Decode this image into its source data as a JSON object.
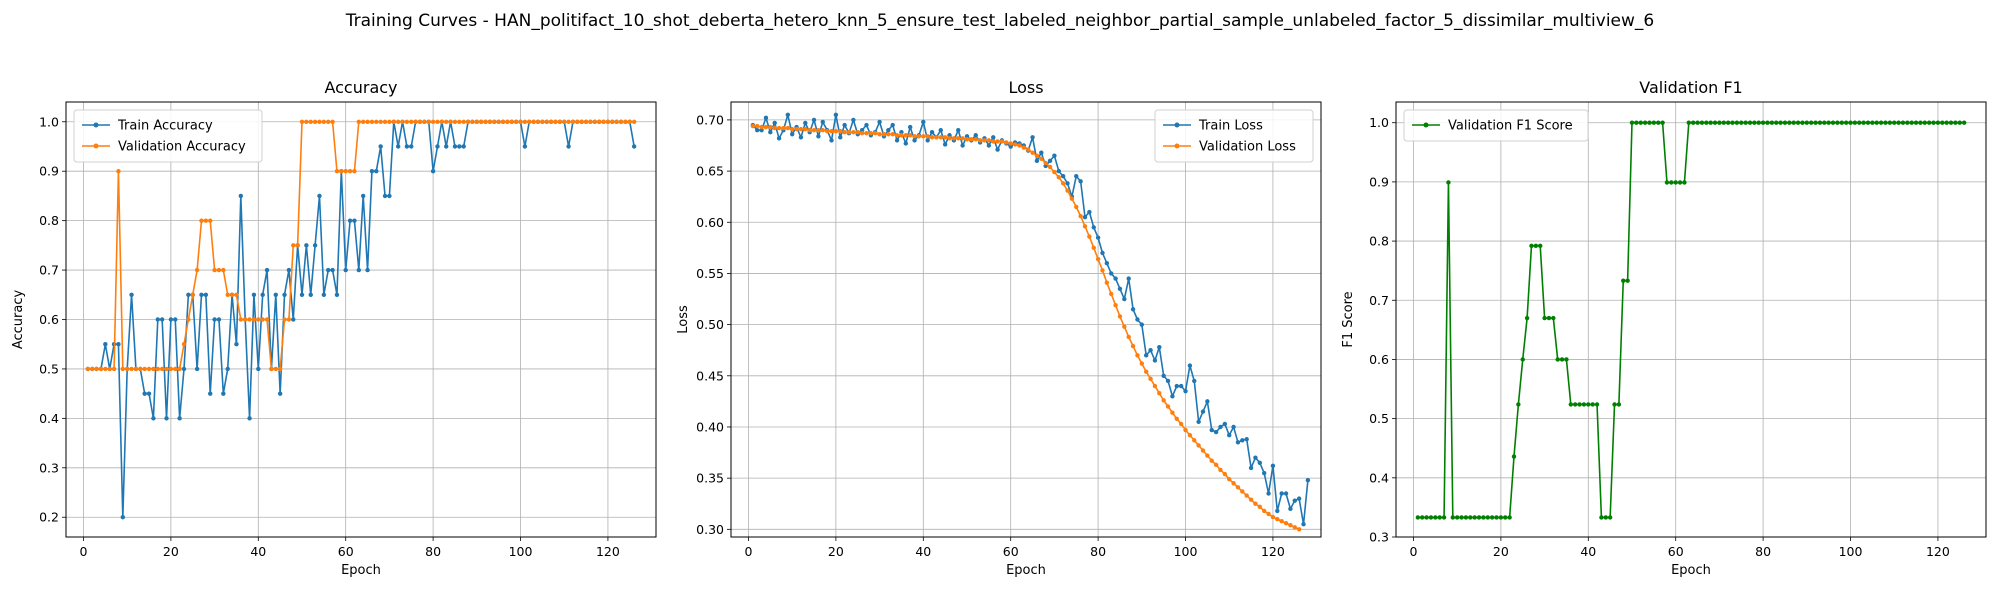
{
  "suptitle": "Training Curves - HAN_politifact_10_shot_deberta_hetero_knn_5_ensure_test_labeled_neighbor_partial_sample_unlabeled_factor_5_dissimilar_multiview_6",
  "colors": {
    "blue": "#1f77b4",
    "orange": "#ff7f0e",
    "green": "#008000",
    "grid": "#b0b0b0"
  },
  "chart_data": [
    {
      "type": "line",
      "title": "Accuracy",
      "xlabel": "Epoch",
      "ylabel": "Accuracy",
      "xlim": [
        -4,
        131
      ],
      "ylim": [
        0.16,
        1.04
      ],
      "xticks": [
        0,
        20,
        40,
        60,
        80,
        100,
        120
      ],
      "yticks": [
        0.2,
        0.3,
        0.4,
        0.5,
        0.6,
        0.7,
        0.8,
        0.9,
        1.0
      ],
      "ytick_labels": [
        "0.2",
        "0.3",
        "0.4",
        "0.5",
        "0.6",
        "0.7",
        "0.8",
        "0.9",
        "1.0"
      ],
      "grid": true,
      "legend_loc": "upper-left",
      "x_start": 1,
      "series": [
        {
          "name": "Train Accuracy",
          "color": "#1f77b4",
          "values": [
            0.5,
            0.5,
            0.5,
            0.5,
            0.55,
            0.5,
            0.55,
            0.55,
            0.2,
            0.5,
            0.65,
            0.5,
            0.5,
            0.45,
            0.45,
            0.4,
            0.6,
            0.6,
            0.4,
            0.6,
            0.6,
            0.4,
            0.5,
            0.65,
            0.65,
            0.5,
            0.65,
            0.65,
            0.45,
            0.6,
            0.6,
            0.45,
            0.5,
            0.65,
            0.55,
            0.85,
            0.6,
            0.4,
            0.65,
            0.5,
            0.65,
            0.7,
            0.5,
            0.65,
            0.45,
            0.65,
            0.7,
            0.6,
            0.75,
            0.65,
            0.75,
            0.65,
            0.75,
            0.85,
            0.65,
            0.7,
            0.7,
            0.65,
            0.9,
            0.7,
            0.8,
            0.8,
            0.7,
            0.85,
            0.7,
            0.9,
            0.9,
            0.95,
            0.85,
            0.85,
            1.0,
            0.95,
            1.0,
            0.95,
            0.95,
            1.0,
            1.0,
            1.0,
            1.0,
            0.9,
            0.95,
            1.0,
            0.95,
            1.0,
            0.95,
            0.95,
            0.95,
            1.0,
            1.0,
            1.0,
            1.0,
            1.0,
            1.0,
            1.0,
            1.0,
            1.0,
            1.0,
            1.0,
            1.0,
            1.0,
            0.95,
            1.0,
            1.0,
            1.0,
            1.0,
            1.0,
            1.0,
            1.0,
            1.0,
            1.0,
            0.95,
            1.0,
            1.0,
            1.0,
            1.0,
            1.0,
            1.0,
            1.0,
            1.0,
            1.0,
            1.0,
            1.0,
            1.0,
            1.0,
            1.0,
            0.95
          ]
        },
        {
          "name": "Validation Accuracy",
          "color": "#ff7f0e",
          "values": [
            0.5,
            0.5,
            0.5,
            0.5,
            0.5,
            0.5,
            0.5,
            0.9,
            0.5,
            0.5,
            0.5,
            0.5,
            0.5,
            0.5,
            0.5,
            0.5,
            0.5,
            0.5,
            0.5,
            0.5,
            0.5,
            0.5,
            0.55,
            0.6,
            0.65,
            0.7,
            0.8,
            0.8,
            0.8,
            0.7,
            0.7,
            0.7,
            0.65,
            0.65,
            0.65,
            0.6,
            0.6,
            0.6,
            0.6,
            0.6,
            0.6,
            0.6,
            0.5,
            0.5,
            0.5,
            0.6,
            0.6,
            0.75,
            0.75,
            1.0,
            1.0,
            1.0,
            1.0,
            1.0,
            1.0,
            1.0,
            1.0,
            0.9,
            0.9,
            0.9,
            0.9,
            0.9,
            1.0,
            1.0,
            1.0,
            1.0,
            1.0,
            1.0,
            1.0,
            1.0,
            1.0,
            1.0,
            1.0,
            1.0,
            1.0,
            1.0,
            1.0,
            1.0,
            1.0,
            1.0,
            1.0,
            1.0,
            1.0,
            1.0,
            1.0,
            1.0,
            1.0,
            1.0,
            1.0,
            1.0,
            1.0,
            1.0,
            1.0,
            1.0,
            1.0,
            1.0,
            1.0,
            1.0,
            1.0,
            1.0,
            1.0,
            1.0,
            1.0,
            1.0,
            1.0,
            1.0,
            1.0,
            1.0,
            1.0,
            1.0,
            1.0,
            1.0,
            1.0,
            1.0,
            1.0,
            1.0,
            1.0,
            1.0,
            1.0,
            1.0,
            1.0,
            1.0,
            1.0,
            1.0,
            1.0,
            1.0
          ]
        }
      ]
    },
    {
      "type": "line",
      "title": "Loss",
      "xlabel": "Epoch",
      "ylabel": "Loss",
      "xlim": [
        -4,
        131
      ],
      "ylim": [
        0.2925,
        0.7175
      ],
      "xticks": [
        0,
        20,
        40,
        60,
        80,
        100,
        120
      ],
      "yticks": [
        0.3,
        0.35,
        0.4,
        0.45,
        0.5,
        0.55,
        0.6,
        0.65,
        0.7
      ],
      "ytick_labels": [
        "0.30",
        "0.35",
        "0.40",
        "0.45",
        "0.50",
        "0.55",
        "0.60",
        "0.65",
        "0.70"
      ],
      "grid": true,
      "legend_loc": "upper-right",
      "x_start": 1,
      "series": [
        {
          "name": "Train Loss",
          "color": "#1f77b4",
          "values": [
            0.695,
            0.69,
            0.69,
            0.702,
            0.688,
            0.697,
            0.682,
            0.69,
            0.705,
            0.686,
            0.693,
            0.683,
            0.697,
            0.688,
            0.7,
            0.684,
            0.698,
            0.69,
            0.68,
            0.705,
            0.683,
            0.695,
            0.687,
            0.7,
            0.686,
            0.69,
            0.695,
            0.685,
            0.688,
            0.698,
            0.684,
            0.69,
            0.695,
            0.68,
            0.688,
            0.677,
            0.693,
            0.68,
            0.685,
            0.698,
            0.68,
            0.688,
            0.683,
            0.69,
            0.676,
            0.685,
            0.68,
            0.69,
            0.675,
            0.684,
            0.68,
            0.685,
            0.678,
            0.682,
            0.675,
            0.683,
            0.671,
            0.68,
            0.677,
            0.674,
            0.678,
            0.677,
            0.675,
            0.67,
            0.683,
            0.66,
            0.668,
            0.655,
            0.66,
            0.665,
            0.65,
            0.645,
            0.638,
            0.625,
            0.645,
            0.64,
            0.605,
            0.61,
            0.595,
            0.585,
            0.57,
            0.56,
            0.55,
            0.545,
            0.535,
            0.525,
            0.545,
            0.515,
            0.505,
            0.5,
            0.47,
            0.475,
            0.465,
            0.478,
            0.45,
            0.445,
            0.43,
            0.44,
            0.44,
            0.435,
            0.46,
            0.445,
            0.405,
            0.415,
            0.425,
            0.397,
            0.395,
            0.4,
            0.403,
            0.392,
            0.4,
            0.385,
            0.387,
            0.388,
            0.36,
            0.37,
            0.365,
            0.355,
            0.335,
            0.362,
            0.318,
            0.335,
            0.335,
            0.32,
            0.328,
            0.33,
            0.305,
            0.348
          ]
        },
        {
          "name": "Validation Loss",
          "color": "#ff7f0e",
          "values": [
            0.694,
            0.694,
            0.693,
            0.693,
            0.693,
            0.692,
            0.692,
            0.692,
            0.692,
            0.691,
            0.691,
            0.691,
            0.691,
            0.69,
            0.69,
            0.69,
            0.69,
            0.689,
            0.689,
            0.689,
            0.689,
            0.688,
            0.688,
            0.688,
            0.688,
            0.687,
            0.687,
            0.687,
            0.687,
            0.686,
            0.686,
            0.686,
            0.686,
            0.685,
            0.685,
            0.685,
            0.685,
            0.684,
            0.684,
            0.684,
            0.684,
            0.683,
            0.683,
            0.683,
            0.683,
            0.682,
            0.682,
            0.682,
            0.682,
            0.681,
            0.681,
            0.681,
            0.68,
            0.68,
            0.68,
            0.679,
            0.679,
            0.679,
            0.678,
            0.677,
            0.676,
            0.675,
            0.673,
            0.671,
            0.668,
            0.665,
            0.662,
            0.658,
            0.654,
            0.649,
            0.644,
            0.638,
            0.631,
            0.623,
            0.615,
            0.606,
            0.596,
            0.586,
            0.575,
            0.564,
            0.553,
            0.541,
            0.53,
            0.519,
            0.508,
            0.498,
            0.488,
            0.479,
            0.47,
            0.462,
            0.454,
            0.447,
            0.44,
            0.433,
            0.426,
            0.42,
            0.414,
            0.408,
            0.403,
            0.397,
            0.392,
            0.387,
            0.382,
            0.377,
            0.372,
            0.367,
            0.363,
            0.358,
            0.354,
            0.349,
            0.345,
            0.341,
            0.337,
            0.333,
            0.329,
            0.325,
            0.322,
            0.318,
            0.315,
            0.312,
            0.31,
            0.308,
            0.306,
            0.304,
            0.302,
            0.3
          ]
        }
      ]
    },
    {
      "type": "line",
      "title": "Validation F1",
      "xlabel": "Epoch",
      "ylabel": "F1 Score",
      "xlim": [
        -4,
        131
      ],
      "ylim": [
        0.3,
        1.035
      ],
      "xticks": [
        0,
        20,
        40,
        60,
        80,
        100,
        120
      ],
      "yticks": [
        0.3,
        0.4,
        0.5,
        0.6,
        0.7,
        0.8,
        0.9,
        1.0
      ],
      "ytick_labels": [
        "0.3",
        "0.4",
        "0.5",
        "0.6",
        "0.7",
        "0.8",
        "0.9",
        "1.0"
      ],
      "grid": true,
      "legend_loc": "upper-left",
      "x_start": 1,
      "series": [
        {
          "name": "Validation F1 Score",
          "color": "#008000",
          "values": [
            0.333,
            0.333,
            0.333,
            0.333,
            0.333,
            0.333,
            0.333,
            0.899,
            0.333,
            0.333,
            0.333,
            0.333,
            0.333,
            0.333,
            0.333,
            0.333,
            0.333,
            0.333,
            0.333,
            0.333,
            0.333,
            0.333,
            0.436,
            0.524,
            0.6,
            0.67,
            0.792,
            0.792,
            0.792,
            0.67,
            0.67,
            0.67,
            0.6,
            0.6,
            0.6,
            0.524,
            0.524,
            0.524,
            0.524,
            0.524,
            0.524,
            0.524,
            0.333,
            0.333,
            0.333,
            0.524,
            0.524,
            0.733,
            0.733,
            1.0,
            1.0,
            1.0,
            1.0,
            1.0,
            1.0,
            1.0,
            1.0,
            0.899,
            0.899,
            0.899,
            0.899,
            0.899,
            1.0,
            1.0,
            1.0,
            1.0,
            1.0,
            1.0,
            1.0,
            1.0,
            1.0,
            1.0,
            1.0,
            1.0,
            1.0,
            1.0,
            1.0,
            1.0,
            1.0,
            1.0,
            1.0,
            1.0,
            1.0,
            1.0,
            1.0,
            1.0,
            1.0,
            1.0,
            1.0,
            1.0,
            1.0,
            1.0,
            1.0,
            1.0,
            1.0,
            1.0,
            1.0,
            1.0,
            1.0,
            1.0,
            1.0,
            1.0,
            1.0,
            1.0,
            1.0,
            1.0,
            1.0,
            1.0,
            1.0,
            1.0,
            1.0,
            1.0,
            1.0,
            1.0,
            1.0,
            1.0,
            1.0,
            1.0,
            1.0,
            1.0,
            1.0,
            1.0,
            1.0,
            1.0,
            1.0,
            1.0
          ]
        }
      ]
    }
  ]
}
